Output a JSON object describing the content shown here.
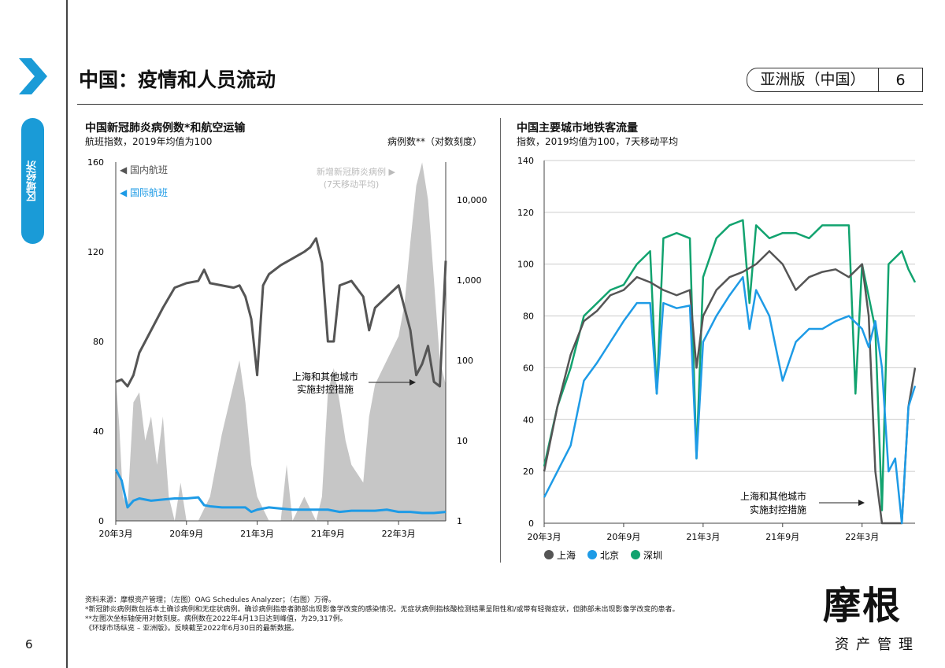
{
  "sidebar": {
    "section_label": "区域经济",
    "page_number": "6"
  },
  "header": {
    "title": "中国：疫情和人员流动",
    "edition": "亚洲版（中国）",
    "page": "6"
  },
  "colors": {
    "domestic": "#555555",
    "international": "#1e9be6",
    "cases": "#c6c6c6",
    "shanghai": "#555555",
    "beijing": "#1e9be6",
    "shenzhen": "#12a36f",
    "accent": "#1a9bd7"
  },
  "chart_data": [
    {
      "type": "line",
      "title": "中国新冠肺炎病例数*和航空运输",
      "subtitle": "航班指数，2019年均值为100",
      "ylabel_right": "病例数**（对数刻度）",
      "x_unit": "months since 2020-03",
      "xticks": [
        {
          "x": 0,
          "label": "20年3月"
        },
        {
          "x": 6,
          "label": "20年9月"
        },
        {
          "x": 12,
          "label": "21年3月"
        },
        {
          "x": 18,
          "label": "21年9月"
        },
        {
          "x": 24,
          "label": "22年3月"
        }
      ],
      "xlim": [
        0,
        28
      ],
      "ylim": [
        0,
        160
      ],
      "yticks": [
        0,
        40,
        80,
        120,
        160
      ],
      "y2lim": [
        1,
        29317
      ],
      "y2scale": "log",
      "y2ticks": [
        {
          "v": 1,
          "label": "1"
        },
        {
          "v": 10,
          "label": "10"
        },
        {
          "v": 100,
          "label": "100"
        },
        {
          "v": 1000,
          "label": "1,000"
        },
        {
          "v": 10000,
          "label": "10,000"
        }
      ],
      "legend": {
        "domestic": "国内航班",
        "international": "国际航班",
        "cases": "新增新冠肺炎病例",
        "cases_sub": "(7天移动平均)"
      },
      "annotation": [
        "上海和其他城市",
        "实施封控措施"
      ],
      "series": [
        {
          "name": "国内航班",
          "axis": "left",
          "x": [
            0,
            0.5,
            1,
            1.5,
            2,
            3,
            3.5,
            4,
            5,
            6,
            7,
            7.5,
            8,
            9,
            10,
            10.5,
            11,
            11.5,
            12,
            12.5,
            13,
            14,
            15,
            16,
            16.5,
            17,
            17.5,
            18,
            18.5,
            19,
            20,
            21,
            21.5,
            22,
            23,
            24,
            24.5,
            25,
            25.5,
            26,
            26.5,
            27,
            27.5,
            28
          ],
          "values": [
            62,
            63,
            60,
            65,
            75,
            85,
            90,
            95,
            104,
            106,
            107,
            112,
            106,
            105,
            104,
            105,
            100,
            90,
            65,
            105,
            110,
            114,
            117,
            120,
            122,
            126,
            115,
            80,
            80,
            105,
            107,
            100,
            85,
            95,
            100,
            105,
            95,
            85,
            65,
            70,
            78,
            62,
            60,
            116
          ]
        },
        {
          "name": "国际航班",
          "axis": "left",
          "x": [
            0,
            0.5,
            1,
            1.5,
            2,
            3,
            4,
            5,
            6,
            7,
            7.5,
            8,
            9,
            10,
            11,
            11.5,
            12,
            13,
            14,
            15,
            16,
            17,
            18,
            19,
            20,
            21,
            22,
            23,
            24,
            25,
            26,
            27,
            28
          ],
          "values": [
            23,
            18,
            6,
            9,
            10,
            9,
            9.5,
            10,
            10,
            10.5,
            7,
            6.5,
            6,
            6,
            6,
            4,
            5,
            6,
            5.5,
            5,
            5,
            5,
            5,
            4,
            4.5,
            4.5,
            4.5,
            5,
            4,
            4,
            3.5,
            3.5,
            4
          ]
        },
        {
          "name": "新增新冠肺炎病例",
          "axis": "right",
          "x": [
            0,
            0.3,
            0.6,
            1,
            1.5,
            2,
            2.5,
            3,
            3.5,
            4,
            4.5,
            5,
            5.5,
            6,
            7,
            8,
            9,
            10,
            10.5,
            11,
            11.5,
            12,
            13,
            14,
            14.5,
            15,
            16,
            17,
            17.5,
            18,
            18.5,
            19,
            19.5,
            20,
            21,
            21.5,
            22,
            23,
            24,
            24.5,
            25,
            25.5,
            26,
            26.5,
            27,
            27.5,
            28
          ],
          "values": [
            60,
            15,
            2,
            1.5,
            30,
            40,
            10,
            20,
            5,
            20,
            2,
            1,
            3,
            1,
            1,
            2,
            12,
            50,
            100,
            30,
            5,
            2,
            1,
            1,
            5,
            1,
            2,
            1,
            2,
            40,
            80,
            30,
            10,
            5,
            3,
            20,
            50,
            100,
            200,
            500,
            3000,
            15000,
            29317,
            10000,
            1000,
            100,
            50
          ]
        }
      ]
    },
    {
      "type": "line",
      "title": "中国主要城市地铁客流量",
      "subtitle": "指数，2019均值为100，7天移动平均",
      "x_unit": "months since 2020-03",
      "xticks": [
        {
          "x": 0,
          "label": "20年3月"
        },
        {
          "x": 6,
          "label": "20年9月"
        },
        {
          "x": 12,
          "label": "21年3月"
        },
        {
          "x": 18,
          "label": "21年9月"
        },
        {
          "x": 24,
          "label": "22年3月"
        }
      ],
      "xlim": [
        0,
        28
      ],
      "ylim": [
        0,
        140
      ],
      "yticks": [
        0,
        20,
        40,
        60,
        80,
        100,
        120,
        140
      ],
      "grid": true,
      "legend_position": "bottom",
      "annotation": [
        "上海和其他城市",
        "实施封控措施"
      ],
      "series": [
        {
          "name": "上海",
          "x": [
            0,
            1,
            2,
            3,
            4,
            5,
            6,
            7,
            8,
            9,
            10,
            11,
            11.5,
            12,
            13,
            14,
            15,
            16,
            17,
            18,
            19,
            20,
            21,
            22,
            23,
            24,
            24.5,
            25,
            25.5,
            27,
            27.5,
            28
          ],
          "values": [
            20,
            45,
            65,
            78,
            82,
            88,
            90,
            95,
            93,
            90,
            88,
            90,
            60,
            80,
            90,
            95,
            97,
            100,
            105,
            100,
            90,
            95,
            97,
            98,
            95,
            100,
            80,
            20,
            0,
            0,
            45,
            60
          ]
        },
        {
          "name": "北京",
          "x": [
            0,
            1,
            2,
            3,
            4,
            5,
            6,
            7,
            8,
            8.5,
            9,
            10,
            11,
            11.5,
            12,
            13,
            14,
            15,
            15.5,
            16,
            17,
            18,
            19,
            20,
            21,
            22,
            23,
            24,
            24.5,
            25,
            25.5,
            26,
            26.5,
            27,
            27.5,
            28
          ],
          "values": [
            10,
            20,
            30,
            55,
            62,
            70,
            78,
            85,
            85,
            50,
            85,
            83,
            84,
            25,
            70,
            80,
            88,
            95,
            75,
            90,
            80,
            55,
            70,
            75,
            75,
            78,
            80,
            75,
            68,
            78,
            60,
            20,
            25,
            0,
            45,
            53
          ]
        },
        {
          "name": "深圳",
          "x": [
            0,
            1,
            2,
            3,
            4,
            5,
            6,
            7,
            8,
            8.5,
            9,
            10,
            11,
            11.5,
            12,
            13,
            14,
            15,
            15.5,
            16,
            17,
            18,
            19,
            20,
            21,
            22,
            23,
            23.5,
            24,
            25,
            25.5,
            26,
            27,
            27.5,
            28
          ],
          "values": [
            22,
            45,
            60,
            80,
            85,
            90,
            92,
            100,
            105,
            50,
            110,
            112,
            110,
            25,
            95,
            110,
            115,
            117,
            85,
            115,
            110,
            112,
            112,
            110,
            115,
            115,
            115,
            50,
            100,
            75,
            5,
            100,
            105,
            98,
            93
          ]
        }
      ]
    }
  ],
  "footnotes": [
    "资料来源：摩根资产管理；（左图）OAG Schedules Analyzer；（右图）万得。",
    "*新冠肺炎病例数包括本土确诊病例和无症状病例。确诊病例指患者肺部出现影像学改变的感染情况。无症状病例指核酸检测结果呈阳性和/或带有轻微症状，但肺部未出现影像学改变的患者。",
    "**左图次坐标轴使用对数刻度。病例数在2022年4月13日达到峰值，为29,317例。",
    "《环球市场纵览 – 亚洲版》。反映截至2022年6月30日的最新数据。"
  ],
  "brand": {
    "name": "摩根",
    "sub": "资产管理"
  }
}
